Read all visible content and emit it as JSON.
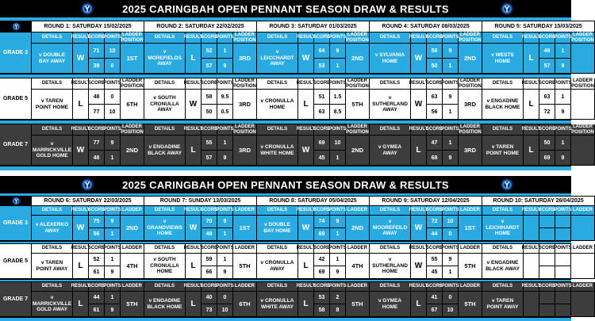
{
  "colors": {
    "accent": "#29abe2",
    "dark_row": "#3d3d3d",
    "bar": "#000000",
    "text_light": "#ffffff"
  },
  "sections": [
    {
      "title": "2025 CARINGBAH OPEN PENNANT SEASON DRAW & RESULTS",
      "columns": [
        "DETAILS",
        "RESULT",
        "SCORE",
        "POINTS",
        "LADDER POSITION"
      ],
      "rounds": [
        "ROUND 1: SATURDAY 15/02/2025",
        "ROUND 2: SATURDAY 22/02/2025",
        "ROUND 3: SATURDAY 01/03/2025",
        "ROUND 4: SATURDAY 08/03/2025",
        "ROUND 5: SATURDAY 15/03/2025"
      ],
      "grades": [
        {
          "label": "GRADE 3",
          "theme": "blue",
          "matches": [
            {
              "details": "v DOUBLE BAY AWAY",
              "result": "W",
              "score": [
                "71",
                "39"
              ],
              "points": [
                "10",
                "0"
              ],
              "ladder": "1ST"
            },
            {
              "details": "v MOREFIELDS AWAY",
              "result": "L",
              "score": [
                "52",
                "57"
              ],
              "points": [
                "1",
                "9"
              ],
              "ladder": "3RD"
            },
            {
              "details": "v LEICCHARDT AWAY",
              "result": "W",
              "score": [
                "64",
                "53"
              ],
              "points": [
                "9",
                "1"
              ],
              "ladder": "2ND"
            },
            {
              "details": "v SYLVANIA HOME",
              "result": "W",
              "score": [
                "58",
                "50"
              ],
              "points": [
                "9",
                "1"
              ],
              "ladder": "2ND"
            },
            {
              "details": "v WESTS HOME",
              "result": "L",
              "score": [
                "49",
                "57"
              ],
              "points": [
                "1",
                "9"
              ],
              "ladder": ""
            }
          ]
        },
        {
          "label": "GRADE 5",
          "theme": "white",
          "matches": [
            {
              "details": "v TAREN POINT HOME",
              "result": "L",
              "score": [
                "48",
                "77"
              ],
              "points": [
                "0",
                "10"
              ],
              "ladder": "6TH"
            },
            {
              "details": "v SOUTH CRONULLA AWAY",
              "result": "W",
              "score": [
                "58",
                "50"
              ],
              "points": [
                "9.5",
                "0.5"
              ],
              "ladder": "3RD"
            },
            {
              "details": "v CRONULLA HOME",
              "result": "L",
              "score": [
                "51",
                "63"
              ],
              "points": [
                "1.5",
                "8.5"
              ],
              "ladder": "5TH"
            },
            {
              "details": "v SUTHERLAND AWAY",
              "result": "W",
              "score": [
                "63",
                "56"
              ],
              "points": [
                "9",
                "1"
              ],
              "ladder": "3RD"
            },
            {
              "details": "v ENGADINE BLACK HOME",
              "result": "L",
              "score": [
                "63",
                "72"
              ],
              "points": [
                "1",
                "9"
              ],
              "ladder": ""
            }
          ]
        },
        {
          "label": "GRADE 7",
          "theme": "dark",
          "matches": [
            {
              "details": "v MARRICKVILLE GOLD HOME",
              "result": "W",
              "score": [
                "77",
                "48"
              ],
              "points": [
                "9",
                "1"
              ],
              "ladder": "2ND"
            },
            {
              "details": "v ENGADINE BLACK AWAY",
              "result": "L",
              "score": [
                "55",
                "57"
              ],
              "points": [
                "1",
                "9"
              ],
              "ladder": "3RD"
            },
            {
              "details": "v CRONULLA WHITE HOME",
              "result": "W",
              "score": [
                "69",
                "45"
              ],
              "points": [
                "10",
                "1"
              ],
              "ladder": "2ND"
            },
            {
              "details": "v GYMEA AWAY",
              "result": "L",
              "score": [
                "47",
                "68"
              ],
              "points": [
                "1",
                "9"
              ],
              "ladder": "3RD"
            },
            {
              "details": "v TAREN POINT HOME",
              "result": "L",
              "score": [
                "50",
                "69"
              ],
              "points": [
                "1",
                "9"
              ],
              "ladder": ""
            }
          ]
        }
      ]
    },
    {
      "title": "2025 CARINGBAH OPEN PENNANT SEASON DRAW & RESULTS",
      "columns": [
        "DETAILS",
        "RESULT",
        "SCORE",
        "POINTS",
        "LADDER"
      ],
      "rounds": [
        "ROUND 6: SATURDAY 22/03/2025",
        "ROUND 7: SUNDAY 13/03/2025",
        "ROUND 8: SATURDAY 05/04/2025",
        "ROUND 9: SATURDAY 12/04/2025",
        "ROUND 10: SATURDAY 26/04/2025"
      ],
      "grades": [
        {
          "label": "GRADE 3",
          "theme": "blue",
          "matches": [
            {
              "details": "v ALEXERKO AWAY",
              "result": "W",
              "score": [
                "75",
                "56"
              ],
              "points": [
                "9",
                "1"
              ],
              "ladder": "2ND"
            },
            {
              "details": "v GRANDVIEWS HOME",
              "result": "W",
              "score": [
                "70",
                "49"
              ],
              "points": [
                "9",
                "1"
              ],
              "ladder": "1ST"
            },
            {
              "details": "v DOUBLE BAY HOME",
              "result": "W",
              "score": [
                "74",
                "69"
              ],
              "points": [
                "9",
                "1"
              ],
              "ladder": "2ND"
            },
            {
              "details": "v MOOREFEILD AWAY",
              "result": "W",
              "score": [
                "72",
                "44"
              ],
              "points": [
                "10",
                "0"
              ],
              "ladder": "1ST"
            },
            {
              "details": "v LEICHHARDT HOME",
              "result": "",
              "score": [
                "",
                ""
              ],
              "points": [
                "",
                ""
              ],
              "ladder": ""
            }
          ]
        },
        {
          "label": "GRADE 5",
          "theme": "white",
          "matches": [
            {
              "details": "v TAREN POINT AWAY",
              "result": "L",
              "score": [
                "52",
                "61"
              ],
              "points": [
                "1",
                "9"
              ],
              "ladder": "4TH"
            },
            {
              "details": "v SOUTH CRONULLA HOME",
              "result": "L",
              "score": [
                "59",
                "66"
              ],
              "points": [
                "1",
                "9"
              ],
              "ladder": "5TH"
            },
            {
              "details": "v CRONULLA AWAY",
              "result": "L",
              "score": [
                "42",
                "69"
              ],
              "points": [
                "1",
                "9"
              ],
              "ladder": "4TH"
            },
            {
              "details": "v SUTHERLAND HOME",
              "result": "W",
              "score": [
                "55",
                "45"
              ],
              "points": [
                "9",
                "1"
              ],
              "ladder": "5TH"
            },
            {
              "details": "v ENGADINE BLACK AWAY",
              "result": "",
              "score": [
                "",
                ""
              ],
              "points": [
                "",
                ""
              ],
              "ladder": ""
            }
          ]
        },
        {
          "label": "GRADE 7",
          "theme": "dark",
          "matches": [
            {
              "details": "v MARRICKVILLE GOLD AWAY",
              "result": "L",
              "score": [
                "44",
                "61"
              ],
              "points": [
                "1",
                "9"
              ],
              "ladder": "5TH"
            },
            {
              "details": "v ENGADINE BLACK HOME",
              "result": "L",
              "score": [
                "40",
                "73"
              ],
              "points": [
                "0",
                "10"
              ],
              "ladder": "6TH"
            },
            {
              "details": "v CRONULLA WHITE AWAY",
              "result": "L",
              "score": [
                "53",
                "58"
              ],
              "points": [
                "2",
                "8"
              ],
              "ladder": "5TH"
            },
            {
              "details": "v GYMEA HOME",
              "result": "L",
              "score": [
                "41",
                "67"
              ],
              "points": [
                "0",
                "10"
              ],
              "ladder": "5TH"
            },
            {
              "details": "v TAREN POINT AWAY",
              "result": "",
              "score": [
                "",
                ""
              ],
              "points": [
                "",
                ""
              ],
              "ladder": ""
            }
          ]
        }
      ]
    }
  ]
}
